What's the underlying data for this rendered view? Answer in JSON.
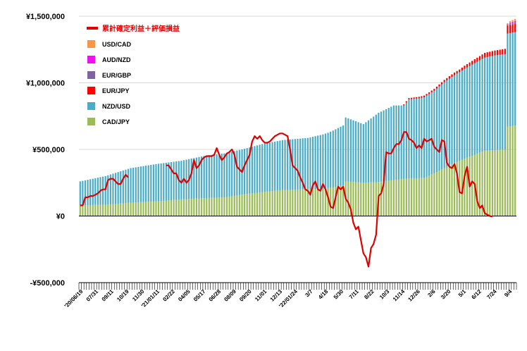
{
  "chart_data": {
    "type": "bar",
    "stacked": true,
    "title": "",
    "xlabel": "",
    "ylabel": "",
    "ylim": [
      -500000,
      1500000
    ],
    "y_ticks": [
      {
        "value": 1500000,
        "label": "¥1,500,000"
      },
      {
        "value": 1000000,
        "label": "¥1,000,000"
      },
      {
        "value": 500000,
        "label": "¥500,000"
      },
      {
        "value": 0,
        "label": "¥0"
      },
      {
        "value": -500000,
        "label": "-¥500,000"
      }
    ],
    "x_tick_labels": [
      "'20/06/19",
      "07/31",
      "09/11",
      "10/19",
      "11/30",
      "'21/01/11",
      "02/22",
      "04/05",
      "05/17",
      "06/28",
      "08/09",
      "09/20",
      "11/01",
      "12/13",
      "'22/01/24",
      "3/7",
      "4/18",
      "5/30",
      "7/11",
      "8/22",
      "10/3",
      "11/14",
      "12/26",
      "2/6",
      "3/20",
      "5/1",
      "6/12",
      "7/24",
      "9/4"
    ],
    "legend_position": "top-left",
    "grid": "horizontal",
    "bar_series": [
      {
        "name": "USD/CAD",
        "color": "#f79646",
        "keypoints": [
          [
            0,
            0
          ],
          [
            168,
            0
          ],
          [
            169,
            8000
          ],
          [
            170,
            12000
          ],
          [
            172,
            15000
          ]
        ]
      },
      {
        "name": "AUD/NZD",
        "color": "#ee10ee",
        "keypoints": [
          [
            0,
            0
          ],
          [
            168,
            0
          ],
          [
            169,
            5000
          ],
          [
            170,
            8000
          ],
          [
            172,
            10000
          ]
        ]
      },
      {
        "name": "EUR/GBP",
        "color": "#8064a2",
        "keypoints": [
          [
            0,
            0
          ],
          [
            168,
            0
          ],
          [
            169,
            5000
          ],
          [
            170,
            8000
          ],
          [
            172,
            10000
          ]
        ]
      },
      {
        "name": "EUR/JPY",
        "color": "#ff0000",
        "keypoints": [
          [
            0,
            0
          ],
          [
            127,
            0
          ],
          [
            128,
            8000
          ],
          [
            150,
            20000
          ],
          [
            156,
            30000
          ],
          [
            160,
            35000
          ],
          [
            168,
            40000
          ],
          [
            169,
            60000
          ],
          [
            172,
            65000
          ]
        ]
      },
      {
        "name": "NZD/USD",
        "color": "#4bacc6",
        "keypoints": [
          [
            0,
            180000
          ],
          [
            10,
            215000
          ],
          [
            20,
            260000
          ],
          [
            30,
            280000
          ],
          [
            40,
            290000
          ],
          [
            50,
            320000
          ],
          [
            57,
            330000
          ],
          [
            64,
            340000
          ],
          [
            72,
            360000
          ],
          [
            80,
            375000
          ],
          [
            90,
            385000
          ],
          [
            98,
            415000
          ],
          [
            104,
            450000
          ],
          [
            105,
            480000
          ],
          [
            112,
            440000
          ],
          [
            118,
            520000
          ],
          [
            124,
            560000
          ],
          [
            128,
            550000
          ],
          [
            130,
            595000
          ],
          [
            134,
            600000
          ],
          [
            140,
            620000
          ],
          [
            144,
            645000
          ],
          [
            150,
            665000
          ],
          [
            152,
            675000
          ],
          [
            157,
            690000
          ],
          [
            160,
            700000
          ],
          [
            164,
            710000
          ],
          [
            168,
            715000
          ],
          [
            169,
            700000
          ],
          [
            172,
            700000
          ]
        ]
      },
      {
        "name": "CAD/JPY",
        "color": "#9bbb59",
        "keypoints": [
          [
            0,
            80000
          ],
          [
            10,
            85000
          ],
          [
            20,
            100000
          ],
          [
            30,
            110000
          ],
          [
            40,
            125000
          ],
          [
            50,
            135000
          ],
          [
            57,
            140000
          ],
          [
            64,
            160000
          ],
          [
            72,
            180000
          ],
          [
            80,
            195000
          ],
          [
            88,
            200000
          ],
          [
            96,
            205000
          ],
          [
            100,
            215000
          ],
          [
            104,
            230000
          ],
          [
            105,
            260000
          ],
          [
            112,
            250000
          ],
          [
            118,
            255000
          ],
          [
            124,
            270000
          ],
          [
            128,
            280000
          ],
          [
            136,
            285000
          ],
          [
            140,
            320000
          ],
          [
            144,
            360000
          ],
          [
            148,
            400000
          ],
          [
            152,
            430000
          ],
          [
            156,
            460000
          ],
          [
            160,
            490000
          ],
          [
            164,
            495000
          ],
          [
            168,
            500000
          ],
          [
            169,
            670000
          ],
          [
            172,
            680000
          ]
        ]
      }
    ],
    "line_series": {
      "name": "累計確定利益＋評価損益",
      "color": "#e00000",
      "gaps": [
        [
          16,
          33
        ]
      ],
      "points": [
        [
          0,
          80000
        ],
        [
          1,
          80000
        ],
        [
          2,
          140000
        ],
        [
          3,
          140000
        ],
        [
          4,
          150000
        ],
        [
          5,
          150000
        ],
        [
          6,
          160000
        ],
        [
          7,
          170000
        ],
        [
          8,
          190000
        ],
        [
          9,
          200000
        ],
        [
          10,
          200000
        ],
        [
          11,
          270000
        ],
        [
          12,
          280000
        ],
        [
          13,
          280000
        ],
        [
          14,
          260000
        ],
        [
          15,
          240000
        ],
        [
          16,
          240000
        ],
        [
          17,
          280000
        ],
        [
          18,
          310000
        ],
        [
          19,
          290000
        ],
        [
          34,
          380000
        ],
        [
          35,
          380000
        ],
        [
          36,
          350000
        ],
        [
          37,
          320000
        ],
        [
          38,
          320000
        ],
        [
          39,
          270000
        ],
        [
          40,
          250000
        ],
        [
          41,
          280000
        ],
        [
          42,
          250000
        ],
        [
          43,
          270000
        ],
        [
          44,
          320000
        ],
        [
          45,
          420000
        ],
        [
          46,
          360000
        ],
        [
          47,
          380000
        ],
        [
          48,
          420000
        ],
        [
          49,
          440000
        ],
        [
          50,
          450000
        ],
        [
          51,
          450000
        ],
        [
          52,
          450000
        ],
        [
          53,
          460000
        ],
        [
          54,
          510000
        ],
        [
          55,
          460000
        ],
        [
          56,
          420000
        ],
        [
          57,
          440000
        ],
        [
          58,
          470000
        ],
        [
          59,
          480000
        ],
        [
          60,
          500000
        ],
        [
          61,
          460000
        ],
        [
          62,
          370000
        ],
        [
          63,
          350000
        ],
        [
          64,
          330000
        ],
        [
          65,
          380000
        ],
        [
          66,
          420000
        ],
        [
          67,
          460000
        ],
        [
          68,
          560000
        ],
        [
          69,
          600000
        ],
        [
          70,
          580000
        ],
        [
          71,
          600000
        ],
        [
          72,
          570000
        ],
        [
          73,
          550000
        ],
        [
          74,
          550000
        ],
        [
          75,
          560000
        ],
        [
          76,
          580000
        ],
        [
          77,
          600000
        ],
        [
          78,
          610000
        ],
        [
          79,
          620000
        ],
        [
          80,
          620000
        ],
        [
          81,
          610000
        ],
        [
          82,
          600000
        ],
        [
          83,
          500000
        ],
        [
          84,
          380000
        ],
        [
          85,
          360000
        ],
        [
          86,
          340000
        ],
        [
          87,
          290000
        ],
        [
          88,
          250000
        ],
        [
          89,
          200000
        ],
        [
          90,
          190000
        ],
        [
          91,
          160000
        ],
        [
          92,
          230000
        ],
        [
          93,
          260000
        ],
        [
          94,
          200000
        ],
        [
          95,
          190000
        ],
        [
          96,
          240000
        ],
        [
          97,
          200000
        ],
        [
          98,
          140000
        ],
        [
          99,
          70000
        ],
        [
          100,
          60000
        ],
        [
          101,
          140000
        ],
        [
          102,
          220000
        ],
        [
          103,
          200000
        ],
        [
          104,
          220000
        ],
        [
          105,
          130000
        ],
        [
          106,
          100000
        ],
        [
          107,
          50000
        ],
        [
          108,
          -50000
        ],
        [
          109,
          -100000
        ],
        [
          110,
          -80000
        ],
        [
          111,
          -180000
        ],
        [
          112,
          -280000
        ],
        [
          113,
          -310000
        ],
        [
          114,
          -380000
        ],
        [
          115,
          -240000
        ],
        [
          116,
          -210000
        ],
        [
          117,
          -140000
        ],
        [
          118,
          150000
        ],
        [
          119,
          170000
        ],
        [
          120,
          240000
        ],
        [
          121,
          480000
        ],
        [
          122,
          470000
        ],
        [
          123,
          470000
        ],
        [
          124,
          510000
        ],
        [
          125,
          540000
        ],
        [
          126,
          540000
        ],
        [
          127,
          570000
        ],
        [
          128,
          630000
        ],
        [
          129,
          630000
        ],
        [
          130,
          580000
        ],
        [
          131,
          570000
        ],
        [
          132,
          550000
        ],
        [
          133,
          510000
        ],
        [
          134,
          530000
        ],
        [
          135,
          510000
        ],
        [
          136,
          580000
        ],
        [
          137,
          560000
        ],
        [
          138,
          570000
        ],
        [
          139,
          580000
        ],
        [
          140,
          520000
        ],
        [
          141,
          500000
        ],
        [
          142,
          480000
        ],
        [
          143,
          570000
        ],
        [
          144,
          560000
        ],
        [
          145,
          400000
        ],
        [
          146,
          370000
        ],
        [
          147,
          360000
        ],
        [
          148,
          390000
        ],
        [
          149,
          320000
        ],
        [
          150,
          180000
        ],
        [
          151,
          170000
        ],
        [
          152,
          300000
        ],
        [
          153,
          370000
        ],
        [
          154,
          220000
        ],
        [
          155,
          260000
        ],
        [
          156,
          240000
        ],
        [
          157,
          110000
        ],
        [
          158,
          60000
        ],
        [
          159,
          80000
        ],
        [
          160,
          20000
        ],
        [
          161,
          10000
        ],
        [
          162,
          0
        ],
        [
          163,
          -5000
        ]
      ]
    },
    "n_bars": 173
  }
}
